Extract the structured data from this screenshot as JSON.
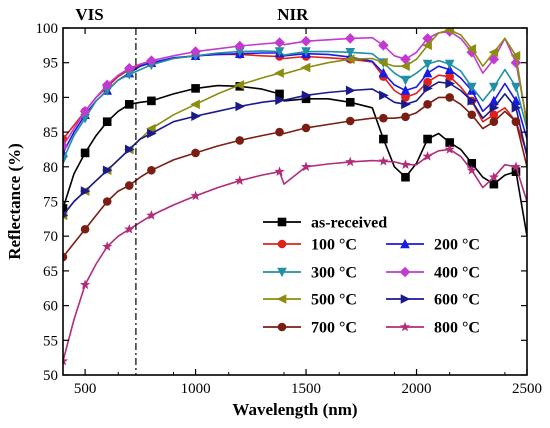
{
  "chart_data": {
    "type": "line",
    "title": "",
    "xlabel": "Wavelength (nm)",
    "ylabel": "Reflectance (%)",
    "xlim": [
      400,
      2500
    ],
    "ylim": [
      50,
      100
    ],
    "xticks": [
      500,
      1000,
      1500,
      2000,
      2500
    ],
    "yticks": [
      50,
      55,
      60,
      65,
      70,
      75,
      80,
      85,
      90,
      95,
      100
    ],
    "grid": false,
    "legend_position": "bottom-right",
    "annotations": [
      {
        "text": "VIS",
        "x": 520
      },
      {
        "text": "NIR",
        "x": 1440
      }
    ],
    "divider_x": 730,
    "x": [
      400,
      450,
      500,
      550,
      600,
      650,
      700,
      750,
      800,
      900,
      1000,
      1100,
      1200,
      1300,
      1380,
      1400,
      1500,
      1600,
      1700,
      1800,
      1850,
      1900,
      1950,
      2000,
      2050,
      2100,
      2150,
      2200,
      2250,
      2300,
      2350,
      2400,
      2450,
      2500
    ],
    "series": [
      {
        "name": "as-received",
        "color": "#000000",
        "marker": "square",
        "values": [
          74,
          79,
          82,
          84.5,
          86.5,
          88,
          89,
          89.3,
          89.5,
          90.5,
          91.3,
          91.7,
          91.6,
          91.2,
          90.5,
          89.5,
          89.8,
          89.8,
          89.3,
          88.5,
          84,
          80,
          78.5,
          80.5,
          84,
          84.8,
          83.5,
          82.5,
          80.5,
          78.5,
          77.5,
          78.8,
          79.3,
          70
        ]
      },
      {
        "name": "100 °C",
        "color": "#e0201a",
        "marker": "circle",
        "values": [
          84,
          86,
          88,
          90,
          91.5,
          93,
          94,
          94.6,
          95,
          95.6,
          96,
          96.2,
          96.2,
          96,
          95.9,
          95.6,
          95.9,
          95.7,
          95.5,
          95.1,
          93,
          91,
          90,
          90.6,
          92.2,
          93.2,
          93,
          91.5,
          89.5,
          86.5,
          87.5,
          88.5,
          86.5,
          82
        ]
      },
      {
        "name": "200 °C",
        "color": "#1a1ae6",
        "marker": "triangle-up",
        "values": [
          82,
          85,
          87.5,
          89.5,
          91,
          92.5,
          93.5,
          94.5,
          95,
          95.7,
          96,
          96.2,
          96.3,
          96.4,
          96.4,
          96,
          96.3,
          96.2,
          95.8,
          95.2,
          93.5,
          91.8,
          91,
          91.5,
          93.5,
          94.5,
          94,
          92.8,
          91,
          88,
          89.5,
          92,
          89.5,
          84
        ]
      },
      {
        "name": "300 °C",
        "color": "#238fa3",
        "marker": "triangle-down",
        "values": [
          81,
          84.5,
          87,
          89.5,
          91,
          92.5,
          93.3,
          94,
          94.7,
          95.6,
          96,
          96.4,
          96.6,
          96.7,
          96.6,
          96.1,
          96.6,
          96.6,
          96.5,
          96.3,
          95,
          93.5,
          92.5,
          93.5,
          94.8,
          95.3,
          94.8,
          93.8,
          91.5,
          89.5,
          91.5,
          94,
          91.5,
          85.5
        ]
      },
      {
        "name": "400 °C",
        "color": "#c23ad0",
        "marker": "diamond",
        "values": [
          83,
          85.5,
          88,
          90,
          91.8,
          93.2,
          94.2,
          94.8,
          95.3,
          96,
          96.6,
          97,
          97.4,
          97.7,
          97.9,
          97.6,
          98.1,
          98.3,
          98.5,
          98.6,
          97.5,
          96,
          95.5,
          96.5,
          98.5,
          99.3,
          99.5,
          98.5,
          96.5,
          93.5,
          95.5,
          98.5,
          95,
          86.5
        ]
      },
      {
        "name": "500 °C",
        "color": "#8c8c10",
        "marker": "triangle-left",
        "values": [
          73,
          75,
          76.5,
          78,
          79.5,
          81,
          82.5,
          84,
          85.5,
          87.5,
          89,
          90.5,
          91.8,
          92.8,
          93.5,
          93.4,
          94.3,
          95,
          95.5,
          95.6,
          95,
          94.5,
          94.5,
          95.5,
          97.5,
          99.3,
          99.7,
          99,
          97,
          94.5,
          96.5,
          98.5,
          96,
          86
        ]
      },
      {
        "name": "600 °C",
        "color": "#1a1a8c",
        "marker": "triangle-right",
        "values": [
          73,
          75,
          76.5,
          78,
          79.5,
          81,
          82.5,
          84,
          84.8,
          86.5,
          87.3,
          88,
          88.7,
          89.3,
          89.6,
          89.6,
          90.3,
          90.7,
          91,
          91.2,
          90.3,
          89.3,
          89,
          89.5,
          91.3,
          92.2,
          92,
          91,
          89.5,
          87,
          88.5,
          90.5,
          88.5,
          81.5
        ]
      },
      {
        "name": "700 °C",
        "color": "#7a1e14",
        "marker": "circle",
        "values": [
          67,
          69,
          71,
          73,
          75,
          76.5,
          77.3,
          78.5,
          79.5,
          81,
          82,
          83,
          83.8,
          84.5,
          85,
          84.8,
          85.6,
          86.1,
          86.6,
          87,
          87,
          87,
          87.2,
          87.8,
          89,
          90,
          90,
          89,
          87.5,
          85.5,
          86.5,
          88,
          86.5,
          80
        ]
      },
      {
        "name": "800 °C",
        "color": "#b22c7a",
        "marker": "star",
        "values": [
          52,
          58,
          63,
          66,
          68.5,
          70,
          71,
          72,
          73,
          74.5,
          75.8,
          77,
          78,
          78.8,
          79.3,
          77.5,
          80,
          80.4,
          80.7,
          80.9,
          80.8,
          80.7,
          80.3,
          80.3,
          81.5,
          82.3,
          82.5,
          81.5,
          79.5,
          77,
          78.5,
          80.3,
          80,
          75
        ]
      }
    ]
  }
}
